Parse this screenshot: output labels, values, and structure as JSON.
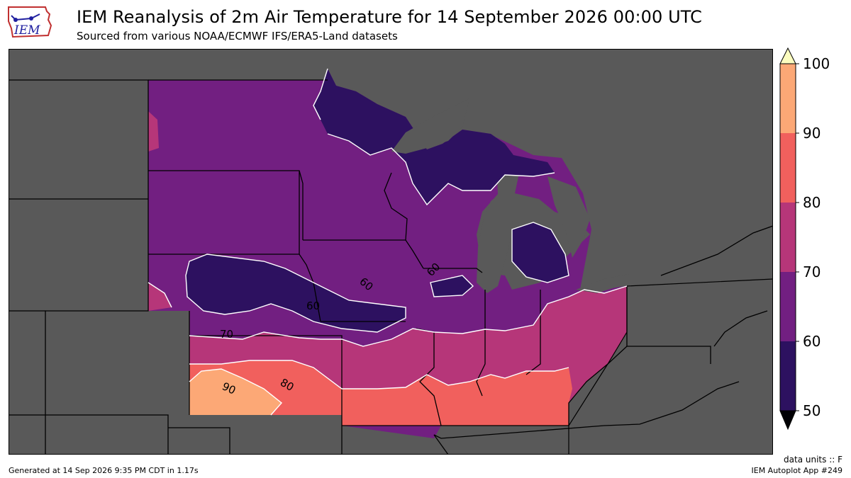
{
  "header": {
    "logo_text": "IEM",
    "title": "IEM Reanalysis of 2m Air Temperature for 14 September 2026 00:00 UTC",
    "subtitle": "Sourced from various NOAA/ECMWF IFS/ERA5-Land datasets"
  },
  "colorbar": {
    "ticks": [
      "100",
      "90",
      "80",
      "70",
      "60",
      "50"
    ],
    "colors": {
      "above_100": "#fcfdbf",
      "90_100": "#fca876",
      "80_90": "#f1605d",
      "70_80": "#b63679",
      "60_70": "#721f81",
      "50_60": "#2d1160",
      "below_50": "#000004"
    }
  },
  "map": {
    "contour_labels": [
      "60",
      "60",
      "60",
      "70",
      "80",
      "90"
    ],
    "colors": {
      "outside": "#595959",
      "water": "#595959",
      "border": "#000000",
      "contour": "#ffffff"
    }
  },
  "footer": {
    "units": "data units :: F",
    "generated": "Generated at 14 Sep 2026 9:35 PM CDT in 1.17s",
    "app": "IEM Autoplot App #249"
  }
}
